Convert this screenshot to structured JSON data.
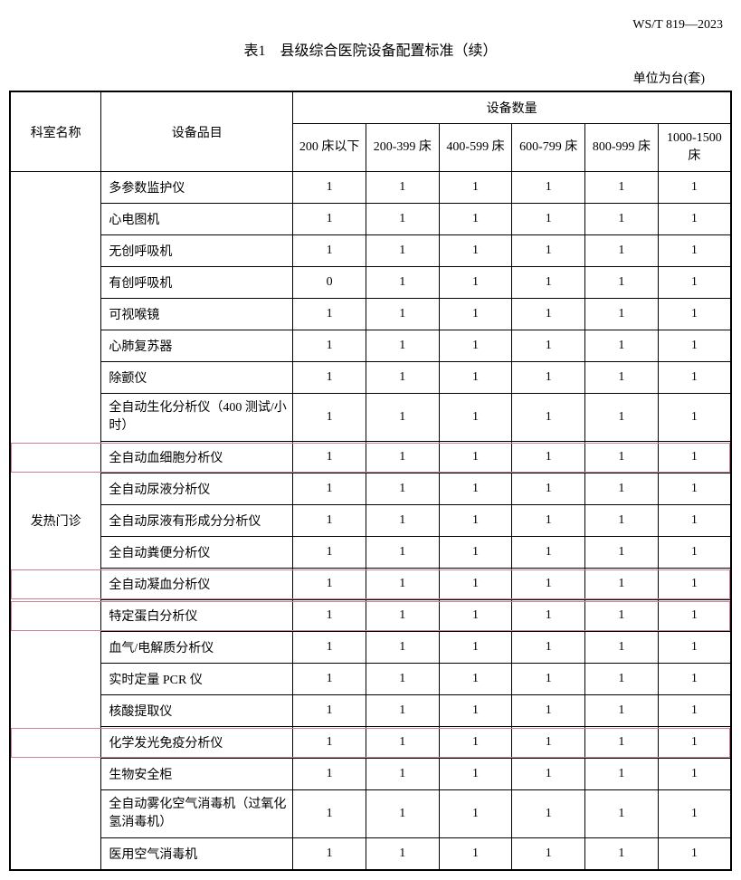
{
  "header_code": "WS/T 819—2023",
  "title": "表1　县级综合医院设备配置标准（续）",
  "unit_label": "单位为台(套)",
  "columns": {
    "dept": "科室名称",
    "item": "设备品目",
    "qty_group": "设备数量",
    "c0": "200 床以下",
    "c1": "200-399 床",
    "c2": "400-599 床",
    "c3": "600-799 床",
    "c4": "800-999 床",
    "c5": "1000-1500 床"
  },
  "dept_name": "发热门诊",
  "rows": [
    {
      "item": "多参数监护仪",
      "v": [
        "1",
        "1",
        "1",
        "1",
        "1",
        "1"
      ],
      "hl": false,
      "tall": false
    },
    {
      "item": "心电图机",
      "v": [
        "1",
        "1",
        "1",
        "1",
        "1",
        "1"
      ],
      "hl": false,
      "tall": false
    },
    {
      "item": "无创呼吸机",
      "v": [
        "1",
        "1",
        "1",
        "1",
        "1",
        "1"
      ],
      "hl": false,
      "tall": false
    },
    {
      "item": "有创呼吸机",
      "v": [
        "0",
        "1",
        "1",
        "1",
        "1",
        "1"
      ],
      "hl": false,
      "tall": false
    },
    {
      "item": "可视喉镜",
      "v": [
        "1",
        "1",
        "1",
        "1",
        "1",
        "1"
      ],
      "hl": false,
      "tall": false
    },
    {
      "item": "心肺复苏器",
      "v": [
        "1",
        "1",
        "1",
        "1",
        "1",
        "1"
      ],
      "hl": false,
      "tall": false
    },
    {
      "item": "除颤仪",
      "v": [
        "1",
        "1",
        "1",
        "1",
        "1",
        "1"
      ],
      "hl": false,
      "tall": false
    },
    {
      "item": "全自动生化分析仪（400 测试/小时）",
      "v": [
        "1",
        "1",
        "1",
        "1",
        "1",
        "1"
      ],
      "hl": false,
      "tall": true
    },
    {
      "item": "全自动血细胞分析仪",
      "v": [
        "1",
        "1",
        "1",
        "1",
        "1",
        "1"
      ],
      "hl": true,
      "tall": false
    },
    {
      "item": "全自动尿液分析仪",
      "v": [
        "1",
        "1",
        "1",
        "1",
        "1",
        "1"
      ],
      "hl": false,
      "tall": false
    },
    {
      "item": "全自动尿液有形成分分析仪",
      "v": [
        "1",
        "1",
        "1",
        "1",
        "1",
        "1"
      ],
      "hl": false,
      "tall": false
    },
    {
      "item": "全自动粪便分析仪",
      "v": [
        "1",
        "1",
        "1",
        "1",
        "1",
        "1"
      ],
      "hl": false,
      "tall": false
    },
    {
      "item": "全自动凝血分析仪",
      "v": [
        "1",
        "1",
        "1",
        "1",
        "1",
        "1"
      ],
      "hl": true,
      "tall": false
    },
    {
      "item": "特定蛋白分析仪",
      "v": [
        "1",
        "1",
        "1",
        "1",
        "1",
        "1"
      ],
      "hl": true,
      "tall": false
    },
    {
      "item": "血气/电解质分析仪",
      "v": [
        "1",
        "1",
        "1",
        "1",
        "1",
        "1"
      ],
      "hl": false,
      "tall": false
    },
    {
      "item": "实时定量 PCR 仪",
      "v": [
        "1",
        "1",
        "1",
        "1",
        "1",
        "1"
      ],
      "hl": false,
      "tall": false
    },
    {
      "item": "核酸提取仪",
      "v": [
        "1",
        "1",
        "1",
        "1",
        "1",
        "1"
      ],
      "hl": false,
      "tall": false
    },
    {
      "item": "化学发光免疫分析仪",
      "v": [
        "1",
        "1",
        "1",
        "1",
        "1",
        "1"
      ],
      "hl": true,
      "tall": false
    },
    {
      "item": "生物安全柜",
      "v": [
        "1",
        "1",
        "1",
        "1",
        "1",
        "1"
      ],
      "hl": false,
      "tall": false
    },
    {
      "item": "全自动雾化空气消毒机（过氧化氢消毒机）",
      "v": [
        "1",
        "1",
        "1",
        "1",
        "1",
        "1"
      ],
      "hl": false,
      "tall": true
    },
    {
      "item": "医用空气消毒机",
      "v": [
        "1",
        "1",
        "1",
        "1",
        "1",
        "1"
      ],
      "hl": false,
      "tall": false
    }
  ]
}
